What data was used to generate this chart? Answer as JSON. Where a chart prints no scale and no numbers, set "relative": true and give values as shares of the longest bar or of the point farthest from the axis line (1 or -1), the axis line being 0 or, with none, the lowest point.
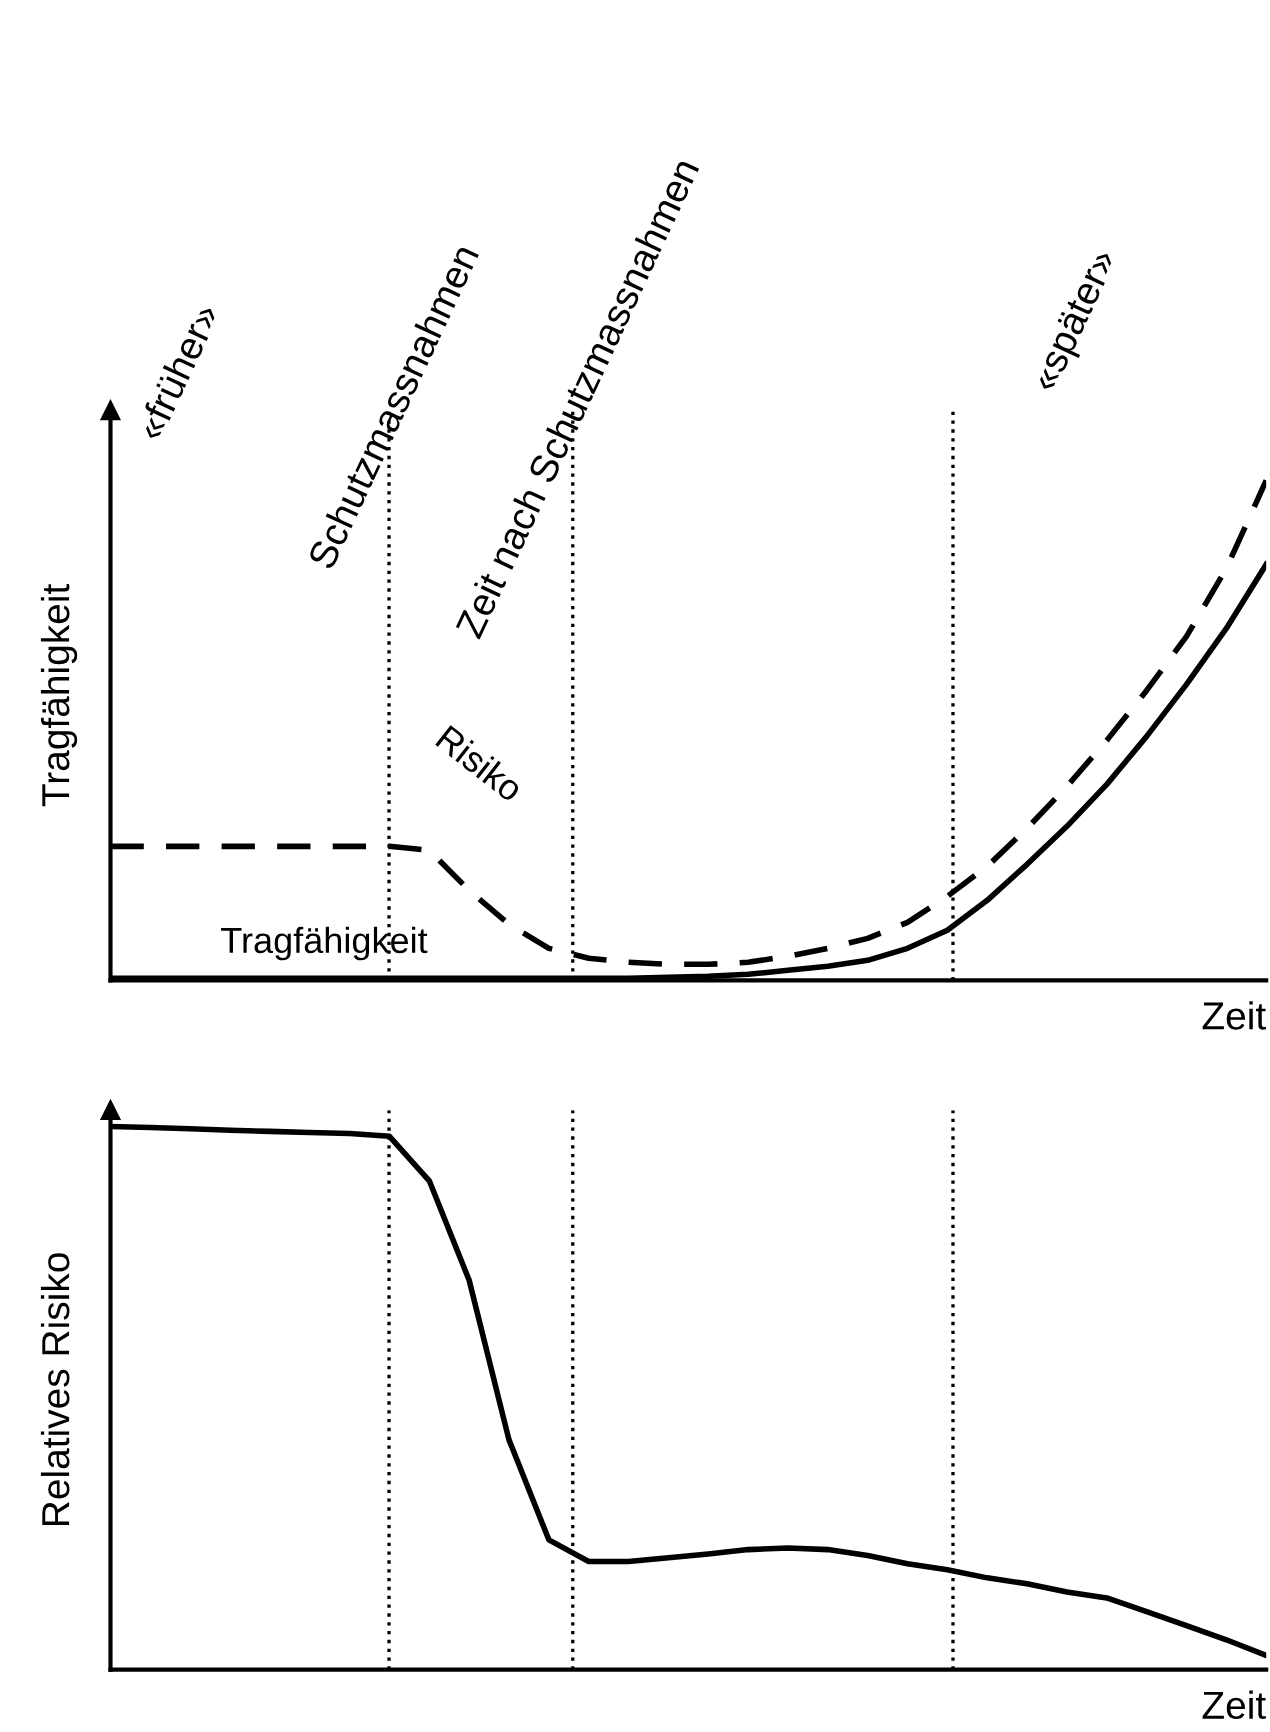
{
  "chart_data": [
    {
      "type": "line",
      "relative": true,
      "xlabel": "Zeit",
      "ylabel": "Tragfähigkeit",
      "categories": [
        null,
        null,
        null,
        null,
        null,
        null,
        null,
        null,
        null,
        null,
        null,
        null,
        null,
        null,
        null,
        null,
        null,
        null,
        null,
        null,
        null,
        null,
        null,
        null,
        null,
        null,
        null,
        null,
        null,
        null
      ],
      "series": [
        {
          "name": "Tragfähigkeit",
          "color": "#000000",
          "line_style": "solid",
          "values": [
            0.004,
            0.004,
            0.004,
            0.004,
            0.004,
            0.004,
            0.004,
            0.004,
            0.004,
            0.004,
            0.004,
            0.004,
            0.004,
            0.004,
            0.006,
            0.008,
            0.012,
            0.02,
            0.028,
            0.04,
            0.064,
            0.1,
            0.16,
            0.232,
            0.308,
            0.392,
            0.488,
            0.592,
            0.704,
            0.832
          ]
        },
        {
          "name": "Risiko",
          "color": "#000000",
          "line_style": "dashed",
          "values": [
            0.268,
            0.268,
            0.268,
            0.268,
            0.268,
            0.268,
            0.268,
            0.268,
            0.26,
            0.18,
            0.112,
            0.064,
            0.044,
            0.036,
            0.032,
            0.032,
            0.036,
            0.048,
            0.064,
            0.084,
            0.116,
            0.168,
            0.228,
            0.304,
            0.388,
            0.48,
            0.58,
            0.688,
            0.824,
            1
          ]
        }
      ],
      "annotations": [
        "«früher»",
        "Schutzmassnahmen",
        "Zeit nach Schutzmassnahmen",
        "«später»"
      ]
    },
    {
      "type": "line",
      "relative": true,
      "xlabel": "Zeit",
      "ylabel": "Relatives Risiko",
      "categories": [
        null,
        null,
        null,
        null,
        null,
        null,
        null,
        null,
        null,
        null,
        null,
        null,
        null,
        null,
        null,
        null,
        null,
        null,
        null,
        null,
        null,
        null,
        null,
        null,
        null,
        null,
        null,
        null,
        null,
        null
      ],
      "series": [
        {
          "color": "#000000",
          "line_style": "solid",
          "values": [
            1,
            0.998,
            0.996,
            0.993,
            0.991,
            0.989,
            0.987,
            0.982,
            0.9,
            0.717,
            0.423,
            0.239,
            0.199,
            0.199,
            0.206,
            0.213,
            0.221,
            0.224,
            0.221,
            0.21,
            0.195,
            0.184,
            0.169,
            0.158,
            0.143,
            0.132,
            0.107,
            0.081,
            0.055,
            0.026
          ]
        }
      ]
    }
  ]
}
